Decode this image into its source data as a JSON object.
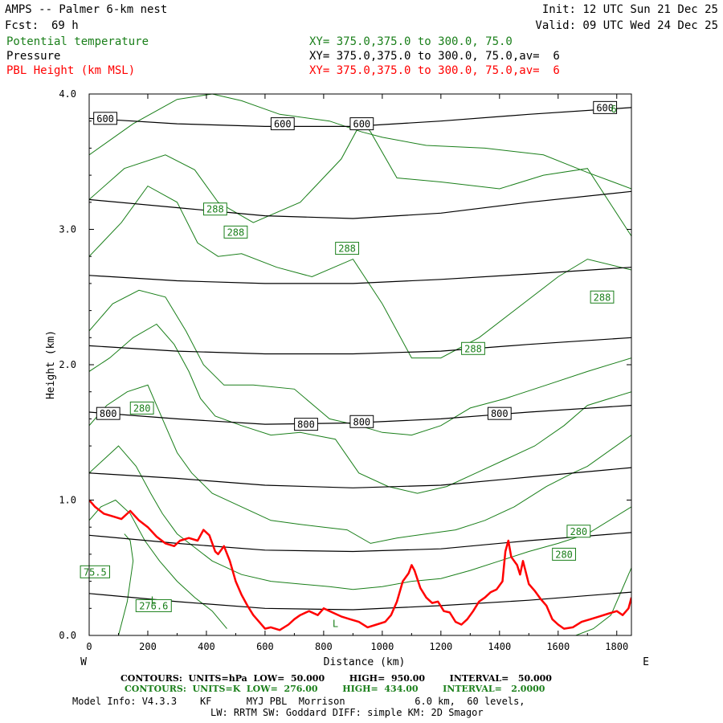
{
  "header": {
    "title": "AMPS -- Palmer 6-km nest",
    "forecast_label": "Fcst:",
    "forecast_hours": "69 h",
    "init": "Init: 12 UTC Sun 21 Dec 25",
    "valid": "Valid: 09 UTC Wed 24 Dec 25"
  },
  "fields": [
    {
      "name": "Potential temperature",
      "xy": "XY= 375.0,375.0 to 300.0, 75.0",
      "color": "#1a7f1a"
    },
    {
      "name": "Pressure",
      "xy": "XY= 375.0,375.0 to 300.0, 75.0,av=  6",
      "color": "#000000"
    },
    {
      "name": "PBL Height (km MSL)",
      "xy": "XY= 375.0,375.0 to 300.0, 75.0,av=  6",
      "color": "#ff0000"
    }
  ],
  "footer": {
    "line1": "CONTOURS:  UNITS=hPa  LOW=  50.000        HIGH=  950.00        INTERVAL=   50.000",
    "line2": "CONTOURS:  UNITS=K  LOW=  276.00        HIGH=  434.00        INTERVAL=   2.0000",
    "line3": "Model Info: V4.3.3    KF      MYJ PBL  Morrison            6.0 km,  60 levels,",
    "line4": "LW: RRTM SW: Goddard DIFF: simple KM: 2D Smagor"
  },
  "chart_data": {
    "type": "line",
    "xlabel": "Distance (km)",
    "ylabel": "Height (km)",
    "x_left_label": "W",
    "x_right_label": "E",
    "xlim": [
      0,
      1850
    ],
    "ylim": [
      0,
      4.0
    ],
    "x_ticks": [
      0,
      200,
      400,
      600,
      800,
      1000,
      1200,
      1400,
      1600,
      1800
    ],
    "y_ticks": [
      0.0,
      1.0,
      2.0,
      3.0,
      4.0
    ],
    "y_tick_labels": [
      "0.0",
      "1.0",
      "2.0",
      "3.0",
      "4.0"
    ],
    "colors": {
      "pressure": "#000000",
      "theta": "#1a7f1a",
      "pbl": "#ff0000"
    },
    "pressure_contours": [
      {
        "x": [
          0,
          300,
          600,
          900,
          1200,
          1500,
          1850
        ],
        "y": [
          3.82,
          3.78,
          3.76,
          3.76,
          3.8,
          3.85,
          3.9
        ]
      },
      {
        "x": [
          0,
          300,
          600,
          900,
          1200,
          1500,
          1850
        ],
        "y": [
          3.22,
          3.16,
          3.1,
          3.08,
          3.12,
          3.2,
          3.28
        ]
      },
      {
        "x": [
          0,
          300,
          600,
          900,
          1200,
          1500,
          1850
        ],
        "y": [
          2.66,
          2.62,
          2.6,
          2.6,
          2.63,
          2.67,
          2.72
        ]
      },
      {
        "x": [
          0,
          300,
          600,
          900,
          1200,
          1500,
          1850
        ],
        "y": [
          2.14,
          2.1,
          2.08,
          2.08,
          2.1,
          2.15,
          2.2
        ]
      },
      {
        "x": [
          0,
          300,
          600,
          900,
          1200,
          1500,
          1850
        ],
        "y": [
          1.65,
          1.6,
          1.56,
          1.57,
          1.6,
          1.65,
          1.7
        ]
      },
      {
        "x": [
          0,
          300,
          600,
          900,
          1200,
          1500,
          1850
        ],
        "y": [
          1.2,
          1.16,
          1.11,
          1.09,
          1.11,
          1.17,
          1.24
        ]
      },
      {
        "x": [
          0,
          300,
          600,
          900,
          1200,
          1500,
          1850
        ],
        "y": [
          0.74,
          0.68,
          0.63,
          0.62,
          0.64,
          0.7,
          0.76
        ]
      },
      {
        "x": [
          0,
          300,
          600,
          900,
          1200,
          1500,
          1850
        ],
        "y": [
          0.31,
          0.25,
          0.2,
          0.19,
          0.22,
          0.26,
          0.32
        ]
      }
    ],
    "pressure_labels": [
      {
        "text": "600",
        "x": 55,
        "y": 3.82
      },
      {
        "text": "600",
        "x": 660,
        "y": 3.78
      },
      {
        "text": "600",
        "x": 930,
        "y": 3.78
      },
      {
        "text": "600",
        "x": 1760,
        "y": 3.9
      },
      {
        "text": "800",
        "x": 65,
        "y": 1.64
      },
      {
        "text": "800",
        "x": 740,
        "y": 1.56
      },
      {
        "text": "800",
        "x": 930,
        "y": 1.58
      },
      {
        "text": "800",
        "x": 1400,
        "y": 1.64
      }
    ],
    "theta_contours": [
      {
        "x": [
          0,
          150,
          300,
          420,
          520,
          650,
          820,
          930,
          1000,
          1150,
          1350,
          1550,
          1700,
          1850
        ],
        "y": [
          3.55,
          3.78,
          3.96,
          4.0,
          3.95,
          3.85,
          3.8,
          3.72,
          3.68,
          3.62,
          3.6,
          3.55,
          3.42,
          3.3
        ]
      },
      {
        "x": [
          0,
          120,
          260,
          360,
          440,
          560,
          720,
          860,
          930,
          960,
          1050,
          1200,
          1400,
          1550,
          1700,
          1850
        ],
        "y": [
          3.22,
          3.45,
          3.55,
          3.44,
          3.2,
          3.05,
          3.2,
          3.52,
          3.8,
          3.72,
          3.38,
          3.35,
          3.3,
          3.4,
          3.45,
          2.95
        ]
      },
      {
        "x": [
          0,
          110,
          200,
          300,
          370,
          440,
          520,
          640,
          760,
          900,
          1000,
          1100,
          1200,
          1330,
          1450,
          1600,
          1700,
          1850
        ],
        "y": [
          2.8,
          3.05,
          3.32,
          3.2,
          2.9,
          2.8,
          2.82,
          2.72,
          2.65,
          2.78,
          2.45,
          2.05,
          2.05,
          2.2,
          2.4,
          2.65,
          2.78,
          2.7
        ]
      },
      {
        "x": [
          0,
          80,
          170,
          260,
          330,
          390,
          460,
          560,
          700,
          820,
          920,
          1000,
          1100,
          1200,
          1300,
          1420,
          1560,
          1700,
          1850
        ],
        "y": [
          2.25,
          2.45,
          2.55,
          2.5,
          2.25,
          2.0,
          1.85,
          1.85,
          1.82,
          1.6,
          1.55,
          1.5,
          1.48,
          1.55,
          1.68,
          1.75,
          1.85,
          1.95,
          2.05
        ]
      },
      {
        "x": [
          0,
          70,
          150,
          230,
          290,
          340,
          380,
          430,
          520,
          620,
          720,
          840,
          920,
          1020,
          1120,
          1220,
          1320,
          1420,
          1520,
          1620,
          1700,
          1850
        ],
        "y": [
          1.95,
          2.05,
          2.2,
          2.3,
          2.15,
          1.95,
          1.75,
          1.62,
          1.55,
          1.48,
          1.5,
          1.45,
          1.2,
          1.1,
          1.05,
          1.1,
          1.2,
          1.3,
          1.4,
          1.55,
          1.7,
          1.8
        ]
      },
      {
        "x": [
          0,
          60,
          130,
          200,
          250,
          300,
          350,
          420,
          520,
          620,
          720,
          800,
          880,
          960,
          1050,
          1150,
          1250,
          1350,
          1450,
          1560,
          1650,
          1700,
          1850
        ],
        "y": [
          1.55,
          1.7,
          1.8,
          1.85,
          1.6,
          1.35,
          1.2,
          1.05,
          0.95,
          0.85,
          0.82,
          0.8,
          0.78,
          0.68,
          0.72,
          0.75,
          0.78,
          0.85,
          0.95,
          1.1,
          1.2,
          1.25,
          1.48
        ]
      },
      {
        "x": [
          0,
          50,
          100,
          160,
          210,
          250,
          300,
          360,
          420,
          520,
          620,
          720,
          820,
          900,
          1000,
          1100,
          1200,
          1300,
          1400,
          1500,
          1600,
          1700,
          1850
        ],
        "y": [
          1.2,
          1.3,
          1.4,
          1.25,
          1.05,
          0.9,
          0.75,
          0.65,
          0.55,
          0.45,
          0.4,
          0.38,
          0.36,
          0.34,
          0.36,
          0.4,
          0.42,
          0.48,
          0.55,
          0.62,
          0.68,
          0.75,
          0.95
        ]
      },
      {
        "x": [
          0,
          40,
          90,
          140,
          190,
          240,
          300,
          360,
          420,
          470
        ],
        "y": [
          0.85,
          0.95,
          1.0,
          0.9,
          0.7,
          0.55,
          0.4,
          0.28,
          0.18,
          0.05
        ]
      },
      {
        "x": [
          100,
          130,
          150,
          140,
          120
        ],
        "y": [
          0.0,
          0.25,
          0.55,
          0.7,
          0.75
        ]
      },
      {
        "x": [
          1660,
          1720,
          1780,
          1820,
          1850
        ],
        "y": [
          0.0,
          0.05,
          0.15,
          0.35,
          0.5
        ]
      }
    ],
    "theta_labels": [
      {
        "text": "288",
        "x": 430,
        "y": 3.15
      },
      {
        "text": "288",
        "x": 500,
        "y": 2.98
      },
      {
        "text": "288",
        "x": 880,
        "y": 2.86
      },
      {
        "text": "288",
        "x": 1750,
        "y": 2.5
      },
      {
        "text": "288",
        "x": 1310,
        "y": 2.12
      },
      {
        "text": "280",
        "x": 180,
        "y": 1.68
      },
      {
        "text": "280",
        "x": 1670,
        "y": 0.77
      },
      {
        "text": "280",
        "x": 1620,
        "y": 0.6
      },
      {
        "text": "75.5",
        "x": 20,
        "y": 0.47
      },
      {
        "text": "276.6",
        "x": 220,
        "y": 0.22
      },
      {
        "text": "L",
        "x": 220,
        "y": 0.26
      },
      {
        "text": "L",
        "x": 840,
        "y": 0.09
      },
      {
        "text": "6",
        "x": 1790,
        "y": 3.89
      }
    ],
    "pbl_height": {
      "x": [
        0,
        20,
        50,
        80,
        110,
        140,
        170,
        200,
        230,
        260,
        290,
        310,
        340,
        370,
        390,
        410,
        430,
        440,
        460,
        480,
        500,
        520,
        540,
        560,
        580,
        600,
        620,
        650,
        680,
        700,
        720,
        750,
        780,
        800,
        830,
        860,
        890,
        920,
        950,
        980,
        1010,
        1030,
        1050,
        1070,
        1090,
        1100,
        1110,
        1130,
        1150,
        1170,
        1190,
        1210,
        1230,
        1250,
        1270,
        1290,
        1310,
        1330,
        1350,
        1370,
        1390,
        1410,
        1420,
        1430,
        1440,
        1460,
        1470,
        1480,
        1500,
        1520,
        1540,
        1560,
        1580,
        1600,
        1620,
        1650,
        1680,
        1710,
        1740,
        1770,
        1800,
        1820,
        1840,
        1850
      ],
      "y": [
        1.0,
        0.95,
        0.9,
        0.88,
        0.86,
        0.92,
        0.85,
        0.8,
        0.73,
        0.68,
        0.66,
        0.7,
        0.72,
        0.7,
        0.78,
        0.74,
        0.62,
        0.6,
        0.66,
        0.55,
        0.4,
        0.3,
        0.22,
        0.15,
        0.1,
        0.05,
        0.06,
        0.04,
        0.08,
        0.12,
        0.15,
        0.18,
        0.15,
        0.2,
        0.17,
        0.14,
        0.12,
        0.1,
        0.06,
        0.08,
        0.1,
        0.15,
        0.25,
        0.4,
        0.46,
        0.52,
        0.48,
        0.35,
        0.28,
        0.24,
        0.25,
        0.18,
        0.17,
        0.1,
        0.08,
        0.12,
        0.18,
        0.25,
        0.28,
        0.32,
        0.34,
        0.4,
        0.62,
        0.7,
        0.58,
        0.52,
        0.45,
        0.55,
        0.38,
        0.33,
        0.27,
        0.22,
        0.12,
        0.08,
        0.05,
        0.06,
        0.1,
        0.12,
        0.14,
        0.16,
        0.18,
        0.15,
        0.2,
        0.28
      ]
    }
  }
}
